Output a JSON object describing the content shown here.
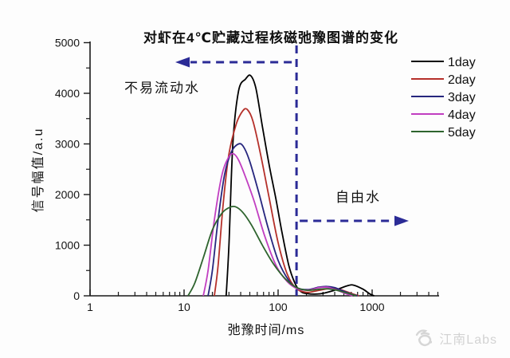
{
  "title": "对虾在4℃贮藏过程核磁弛豫图谱的变化",
  "annotations": {
    "bound_water": "不易流动水",
    "free_water": "自由水"
  },
  "watermark": {
    "label": "江南Labs",
    "icon": "jiangnan-labs-logo-icon"
  },
  "chart_data": {
    "type": "line",
    "title": "对虾在4℃贮藏过程核磁弛豫图谱的变化",
    "xlabel": "弛豫时间/ms",
    "ylabel": "信号幅值/a.u",
    "x_scale": "log",
    "xlim": [
      1,
      5000
    ],
    "ylim": [
      0,
      5000
    ],
    "grid": false,
    "legend_position": "top-right",
    "x_tick_values": [
      1,
      10,
      100,
      1000
    ],
    "x_tick_labels": [
      "1",
      "10",
      "100",
      "1000"
    ],
    "y_tick_values": [
      0,
      1000,
      2000,
      3000,
      4000,
      5000
    ],
    "y_tick_labels": [
      "0",
      "1000",
      "2000",
      "3000",
      "4000",
      "5000"
    ],
    "annotation_color": "#2b2b96",
    "divider_line_x_ms": 157,
    "axis_color": "#1a1a1a",
    "series": [
      {
        "name": "1day",
        "color": "#000000",
        "points": [
          [
            28,
            0
          ],
          [
            30,
            1000
          ],
          [
            33,
            3000
          ],
          [
            38,
            4050
          ],
          [
            45,
            4280
          ],
          [
            51,
            4350
          ],
          [
            58,
            4100
          ],
          [
            68,
            3350
          ],
          [
            80,
            2600
          ],
          [
            95,
            1900
          ],
          [
            110,
            1250
          ],
          [
            130,
            600
          ],
          [
            150,
            260
          ],
          [
            170,
            100
          ],
          [
            200,
            45
          ],
          [
            280,
            40
          ],
          [
            400,
            110
          ],
          [
            550,
            200
          ],
          [
            640,
            210
          ],
          [
            800,
            130
          ],
          [
            950,
            35
          ],
          [
            1050,
            0
          ]
        ]
      },
      {
        "name": "2day",
        "color": "#b5302a",
        "points": [
          [
            21,
            0
          ],
          [
            23,
            600
          ],
          [
            26,
            1800
          ],
          [
            30,
            2800
          ],
          [
            36,
            3400
          ],
          [
            42,
            3650
          ],
          [
            47,
            3680
          ],
          [
            54,
            3450
          ],
          [
            65,
            2800
          ],
          [
            80,
            1950
          ],
          [
            100,
            1050
          ],
          [
            125,
            430
          ],
          [
            155,
            150
          ],
          [
            200,
            70
          ],
          [
            260,
            100
          ],
          [
            330,
            135
          ],
          [
            420,
            140
          ],
          [
            520,
            90
          ],
          [
            650,
            25
          ],
          [
            720,
            0
          ]
        ]
      },
      {
        "name": "3day",
        "color": "#26267e",
        "points": [
          [
            18,
            0
          ],
          [
            20,
            500
          ],
          [
            23,
            1500
          ],
          [
            27,
            2400
          ],
          [
            32,
            2850
          ],
          [
            38,
            3000
          ],
          [
            43,
            2940
          ],
          [
            50,
            2650
          ],
          [
            62,
            2050
          ],
          [
            78,
            1350
          ],
          [
            100,
            700
          ],
          [
            130,
            300
          ],
          [
            160,
            150
          ],
          [
            210,
            125
          ],
          [
            270,
            170
          ],
          [
            330,
            185
          ],
          [
            400,
            160
          ],
          [
            500,
            90
          ],
          [
            620,
            25
          ],
          [
            700,
            0
          ]
        ]
      },
      {
        "name": "4day",
        "color": "#c13ec1",
        "points": [
          [
            16,
            0
          ],
          [
            18,
            500
          ],
          [
            21,
            1500
          ],
          [
            25,
            2350
          ],
          [
            29,
            2700
          ],
          [
            33,
            2810
          ],
          [
            38,
            2680
          ],
          [
            46,
            2300
          ],
          [
            56,
            1850
          ],
          [
            72,
            1180
          ],
          [
            95,
            600
          ],
          [
            125,
            280
          ],
          [
            160,
            140
          ],
          [
            210,
            115
          ],
          [
            270,
            160
          ],
          [
            330,
            170
          ],
          [
            410,
            120
          ],
          [
            520,
            45
          ],
          [
            620,
            0
          ]
        ]
      },
      {
        "name": "5day",
        "color": "#2e642e",
        "points": [
          [
            11,
            0
          ],
          [
            13,
            250
          ],
          [
            16,
            750
          ],
          [
            20,
            1300
          ],
          [
            25,
            1620
          ],
          [
            30,
            1740
          ],
          [
            35,
            1760
          ],
          [
            42,
            1650
          ],
          [
            52,
            1400
          ],
          [
            68,
            1000
          ],
          [
            90,
            620
          ],
          [
            120,
            330
          ],
          [
            155,
            170
          ],
          [
            200,
            110
          ],
          [
            260,
            125
          ],
          [
            330,
            140
          ],
          [
            420,
            110
          ],
          [
            550,
            50
          ],
          [
            680,
            0
          ]
        ]
      }
    ]
  }
}
